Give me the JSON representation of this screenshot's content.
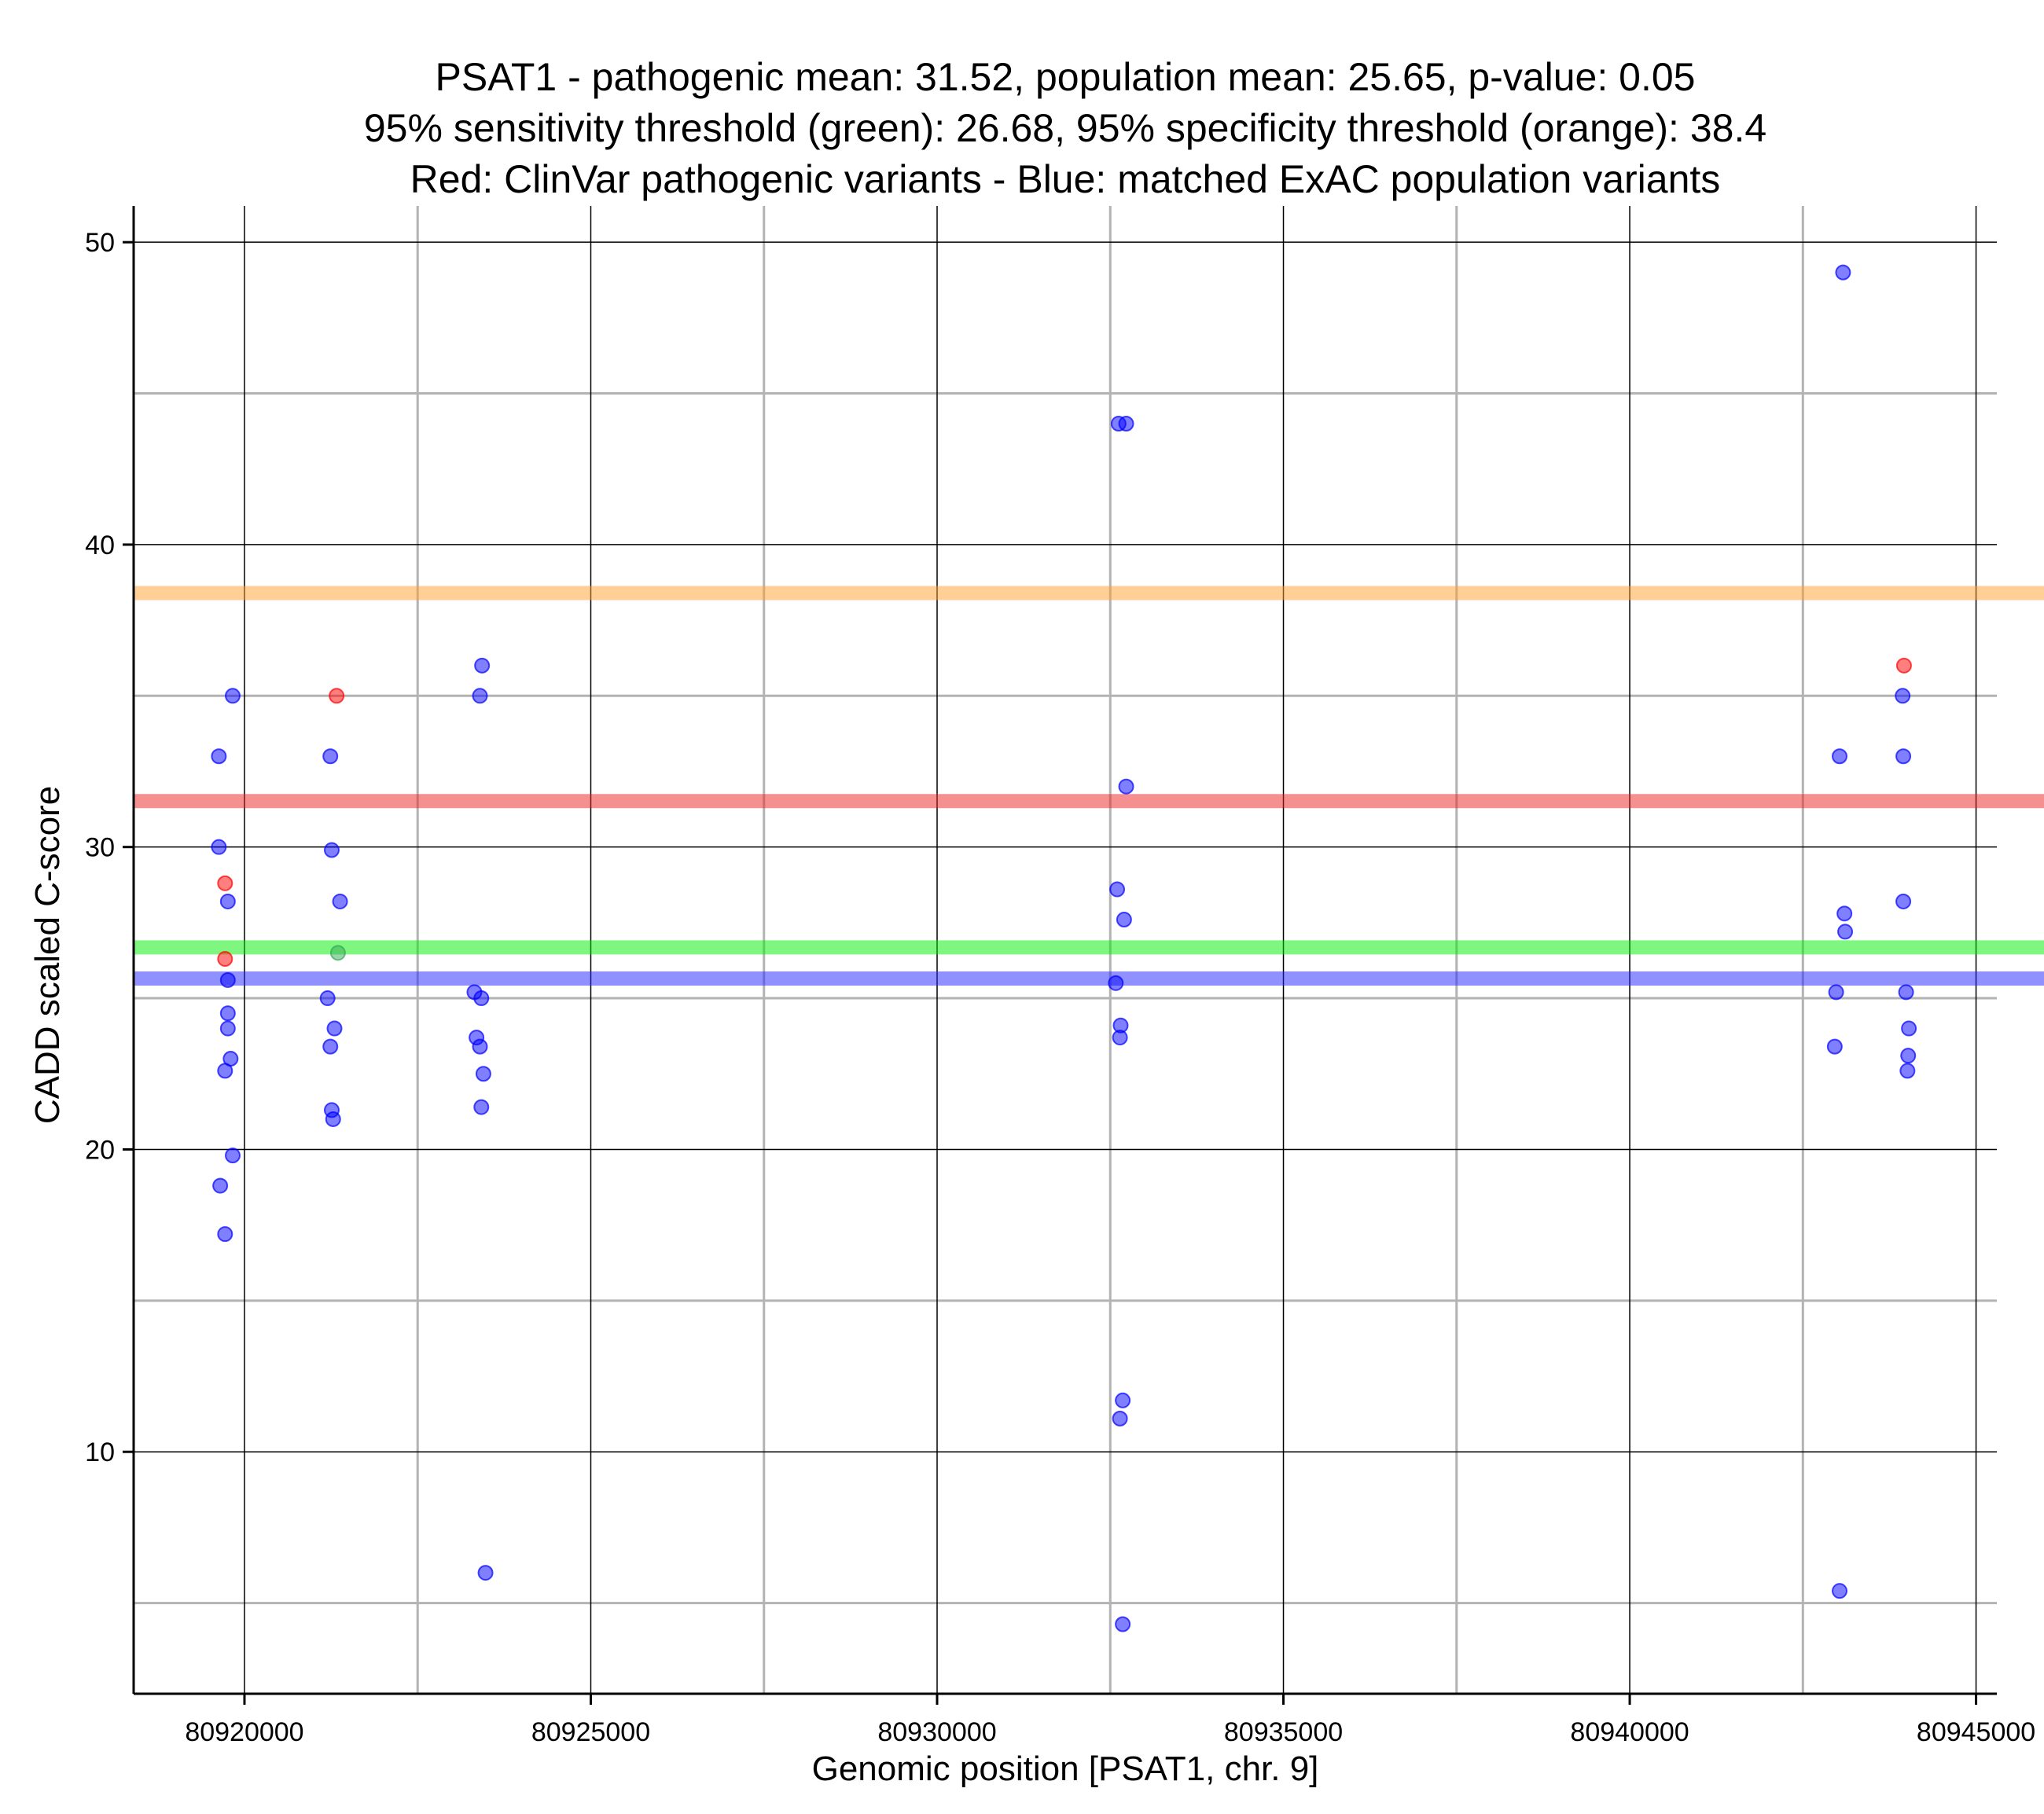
{
  "chart_data": {
    "type": "scatter",
    "title_lines": [
      "PSAT1 - pathogenic mean: 31.52, population mean: 25.65, p-value: 0.05",
      "95% sensitivity threshold (green): 26.68, 95% specificity threshold (orange): 38.4",
      "Red: ClinVar pathogenic variants - Blue: matched ExAC population variants"
    ],
    "xlabel": "Genomic position [PSAT1, chr. 9]",
    "ylabel": "CADD scaled C-score",
    "xlim": [
      80918400,
      80945300
    ],
    "ylim": [
      2.0,
      51.2
    ],
    "x_ticks": [
      80920000,
      80925000,
      80930000,
      80935000,
      80940000,
      80945000
    ],
    "y_ticks": [
      10,
      20,
      30,
      40,
      50
    ],
    "grid": true,
    "colors": {
      "pathogenic": "#ff0000",
      "population": "#0000ff",
      "overlap": "#33aa55",
      "sensitivity": "#00ee00",
      "specificity": "#ffa030",
      "pathogenic_mean": "#ee2222",
      "population_mean": "#2222ff"
    },
    "reference_lines": [
      {
        "name": "specificity-threshold",
        "value": 38.4,
        "color": "#ffa030"
      },
      {
        "name": "pathogenic-mean",
        "value": 31.52,
        "color": "#ee2222"
      },
      {
        "name": "sensitivity-threshold",
        "value": 26.68,
        "color": "#00ee00"
      },
      {
        "name": "population-mean",
        "value": 25.65,
        "color": "#2222ff"
      }
    ],
    "series": [
      {
        "name": "ClinVar pathogenic variants",
        "color": "#ff0000",
        "points": [
          [
            80919720,
            28.8
          ],
          [
            80919720,
            26.3
          ],
          [
            80921330,
            35.0
          ],
          [
            80943960,
            36.0
          ]
        ]
      },
      {
        "name": "matched ExAC population variants",
        "color": "#0000ff",
        "points": [
          [
            80919630,
            33.0
          ],
          [
            80919630,
            30.0
          ],
          [
            80919760,
            28.2
          ],
          [
            80919760,
            25.6
          ],
          [
            80919760,
            24.5
          ],
          [
            80919760,
            24.0
          ],
          [
            80919830,
            35.0
          ],
          [
            80919800,
            23.0
          ],
          [
            80919720,
            22.6
          ],
          [
            80919830,
            19.8
          ],
          [
            80919650,
            18.8
          ],
          [
            80919720,
            17.2
          ],
          [
            80921240,
            33.0
          ],
          [
            80921260,
            29.9
          ],
          [
            80921380,
            28.2
          ],
          [
            80921200,
            25.0
          ],
          [
            80921300,
            24.0
          ],
          [
            80921240,
            23.4
          ],
          [
            80921260,
            21.3
          ],
          [
            80921280,
            21.0
          ],
          [
            80923430,
            36.0
          ],
          [
            80923400,
            35.0
          ],
          [
            80923320,
            25.2
          ],
          [
            80923420,
            25.0
          ],
          [
            80923350,
            23.7
          ],
          [
            80923400,
            23.4
          ],
          [
            80923450,
            22.5
          ],
          [
            80923420,
            21.4
          ],
          [
            80923480,
            6.0
          ],
          [
            80932620,
            44.0
          ],
          [
            80932730,
            44.0
          ],
          [
            80932730,
            32.0
          ],
          [
            80932600,
            28.6
          ],
          [
            80932700,
            27.6
          ],
          [
            80932580,
            25.5
          ],
          [
            80932650,
            24.1
          ],
          [
            80932640,
            23.7
          ],
          [
            80932680,
            11.7
          ],
          [
            80932640,
            11.1
          ],
          [
            80932680,
            4.3
          ],
          [
            80943080,
            49.0
          ],
          [
            80943030,
            33.0
          ],
          [
            80943100,
            27.8
          ],
          [
            80943110,
            27.2
          ],
          [
            80942980,
            25.2
          ],
          [
            80942960,
            23.4
          ],
          [
            80943030,
            5.4
          ],
          [
            80943940,
            35.0
          ],
          [
            80943950,
            33.0
          ],
          [
            80943950,
            28.2
          ],
          [
            80943990,
            25.2
          ],
          [
            80944030,
            24.0
          ],
          [
            80944020,
            23.1
          ],
          [
            80944010,
            22.6
          ]
        ]
      },
      {
        "name": "overlap",
        "color": "#33aa55",
        "points": [
          [
            80921350,
            26.5
          ]
        ]
      }
    ]
  }
}
